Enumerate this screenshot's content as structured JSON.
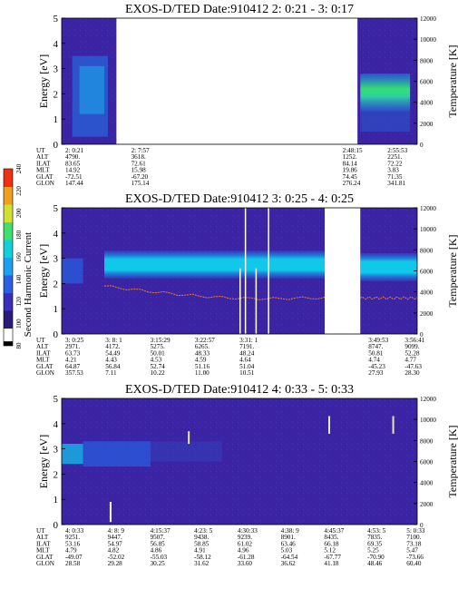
{
  "chart_data": [
    {
      "type": "heatmap",
      "title": "EXOS-D/TED   Date:910412  2: 0:21 - 3: 0:17",
      "ylabel": "Energy [eV]",
      "y2label": "Temperature [K]",
      "ylim": [
        0,
        5
      ],
      "y2lim": [
        0,
        12000
      ],
      "yticks": [
        "0",
        "1",
        "2",
        "3",
        "4",
        "5"
      ],
      "y2ticks": [
        "0",
        "2000",
        "4000",
        "6000",
        "8000",
        "10000",
        "12000"
      ],
      "gaps": [
        [
          0.154,
          0.832
        ]
      ],
      "ephem": {
        "labels": [
          "UT",
          "ALT",
          "ILAT",
          "MLT",
          "GLAT",
          "GLON"
        ],
        "columns": [
          {
            "x": 0.0,
            "v": [
              "2: 0:21",
              "4790.",
              "83.65",
              "14.92",
              "-72.51",
              "147.44"
            ]
          },
          {
            "x": 0.19,
            "v": [
              "2: 7:57",
              "3618.",
              "72.61",
              "15.98",
              "-67.20",
              "175.14"
            ]
          },
          {
            "x": 0.8,
            "v": [
              "2:48:15",
              "1252.",
              "84.14",
              "19.86",
              "74.45",
              "276.24"
            ]
          },
          {
            "x": 0.93,
            "v": [
              "2:55:53",
              "2251.",
              "72.22",
              "3.83",
              "71.35",
              "341.81"
            ]
          }
        ]
      }
    },
    {
      "type": "heatmap",
      "title": "EXOS-D/TED   Date:910412  3: 0:25 - 4: 0:25",
      "ylabel": "Energy [eV]",
      "y2label": "Temperature [K]",
      "ylim": [
        0,
        5
      ],
      "y2lim": [
        0,
        12000
      ],
      "yticks": [
        "0",
        "1",
        "2",
        "3",
        "4",
        "5"
      ],
      "y2ticks": [
        "0",
        "2000",
        "4000",
        "6000",
        "8000",
        "10000",
        "12000"
      ],
      "gaps": [
        [
          0.74,
          0.84
        ]
      ],
      "ephem": {
        "labels": [
          "UT",
          "ALT",
          "ILAT",
          "MLT",
          "GLAT",
          "GLON"
        ],
        "columns": [
          {
            "x": 0.0,
            "v": [
              "3: 0:25",
              "2971.",
              "63.73",
              "4.21",
              "64.87",
              "357.53"
            ]
          },
          {
            "x": 0.116,
            "v": [
              "3: 8: 1",
              "4172.",
              "54.49",
              "4.43",
              "56.84",
              "7.11"
            ]
          },
          {
            "x": 0.245,
            "v": [
              "3:15:29",
              "5275.",
              "50.01",
              "4.53",
              "52.74",
              "10.22"
            ]
          },
          {
            "x": 0.374,
            "v": [
              "3:22:57",
              "6265.",
              "48.33",
              "4.59",
              "51.16",
              "11.00"
            ]
          },
          {
            "x": 0.503,
            "v": [
              "3:31: 1",
              "7191.",
              "48.24",
              "4.64",
              "51.04",
              "10.51"
            ]
          },
          {
            "x": 0.875,
            "v": [
              "3:49:53",
              "8747.",
              "50.81",
              "4.74",
              "-45.23",
              "27.93"
            ]
          },
          {
            "x": 0.98,
            "v": [
              "3:56:41",
              "9099.",
              "52.28",
              "4.77",
              "-47.63",
              "28.30"
            ]
          }
        ]
      }
    },
    {
      "type": "heatmap",
      "title": "EXOS-D/TED   Date:910412  4: 0:33 - 5: 0:33",
      "ylabel": "Energy [eV]",
      "y2label": "Temperature [K]",
      "ylim": [
        0,
        5
      ],
      "y2lim": [
        0,
        12000
      ],
      "yticks": [
        "0",
        "1",
        "2",
        "3",
        "4",
        "5"
      ],
      "y2ticks": [
        "0",
        "2000",
        "4000",
        "6000",
        "8000",
        "10000",
        "12000"
      ],
      "gaps": [],
      "ephem": {
        "labels": [
          "UT",
          "ALT",
          "ILAT",
          "MLT",
          "GLAT",
          "GLON"
        ],
        "columns": [
          {
            "x": 0.0,
            "v": [
              "4: 0:33",
              "9251.",
              "53.16",
              "4.79",
              "-49.07",
              "28.58"
            ]
          },
          {
            "x": 0.122,
            "v": [
              "4: 8: 9",
              "9447.",
              "54.97",
              "4.82",
              "-52.02",
              "29.28"
            ]
          },
          {
            "x": 0.245,
            "v": [
              "4:15:37",
              "9507.",
              "56.85",
              "4.86",
              "-55.03",
              "30.25"
            ]
          },
          {
            "x": 0.372,
            "v": [
              "4:23: 5",
              "9438.",
              "58.85",
              "4.91",
              "-58.12",
              "31.62"
            ]
          },
          {
            "x": 0.497,
            "v": [
              "4:30:33",
              "9239.",
              "61.02",
              "4.96",
              "-61.28",
              "33.60"
            ]
          },
          {
            "x": 0.622,
            "v": [
              "4:38: 9",
              "8901.",
              "63.46",
              "5.03",
              "-64.54",
              "36.62"
            ]
          },
          {
            "x": 0.747,
            "v": [
              "4:45:37",
              "8435.",
              "66.18",
              "5.12",
              "-67.77",
              "41.18"
            ]
          },
          {
            "x": 0.872,
            "v": [
              "4:53: 5",
              "7835.",
              "69.35",
              "5.25",
              "-70.90",
              "48.46"
            ]
          },
          {
            "x": 0.985,
            "v": [
              "5: 0:33",
              "7100.",
              "73.18",
              "5.47",
              "-73.66",
              "60.40"
            ]
          }
        ]
      }
    }
  ],
  "colorbar": {
    "label": "Second Harmonic Current",
    "ticks": [
      "80",
      "100",
      "120",
      "140",
      "160",
      "180",
      "200",
      "220",
      "240"
    ]
  }
}
